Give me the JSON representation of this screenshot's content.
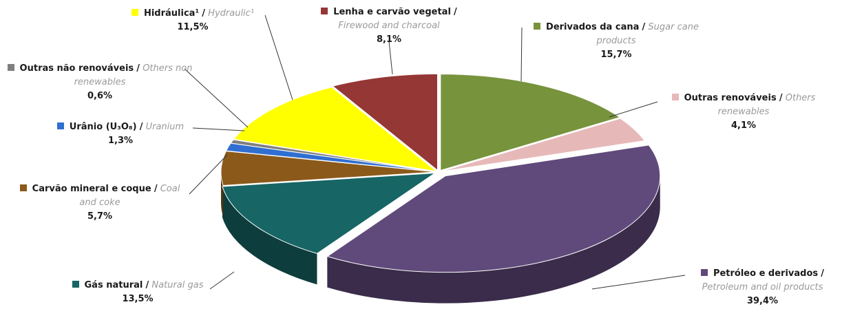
{
  "chart_data": {
    "type": "pie",
    "separator": "/",
    "categories": [
      "Derivados da cana",
      "Outras renováveis",
      "Petróleo e derivados",
      "Gás natural",
      "Carvão mineral e coque",
      "Urânio (U₃O₈)",
      "Outras não renováveis",
      "Hidráulica¹",
      "Lenha e carvão vegetal"
    ],
    "categories_en": [
      "Sugar cane products",
      "Others renewables",
      "Petroleum and oil products",
      "Natural gas",
      "Coal and coke",
      "Uranium",
      "Others non renewables",
      "Hydraulic¹",
      "Firewood and charcoal"
    ],
    "values": [
      15.7,
      4.1,
      39.4,
      13.5,
      5.7,
      1.3,
      0.6,
      11.5,
      8.1
    ],
    "value_labels": [
      "15,7%",
      "4,1%",
      "39,4%",
      "13,5%",
      "5,7%",
      "1,3%",
      "0,6%",
      "11,5%",
      "8,1%"
    ],
    "colors": [
      "#77933c",
      "#e6b9b8",
      "#604a7b",
      "#176565",
      "#8b5a1a",
      "#2f6fd1",
      "#7f7f7f",
      "#ffff00",
      "#953735"
    ]
  }
}
